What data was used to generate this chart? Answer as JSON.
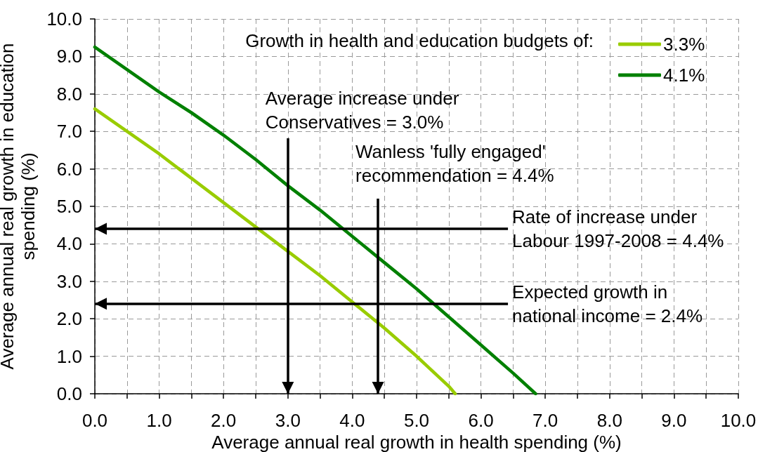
{
  "chart_data": {
    "type": "line",
    "xlabel": "Average annual real growth in health spending (%)",
    "ylabel": "Average annual real growth in education\nspending (%)",
    "legend_title": "Growth in health and education budgets of:",
    "series": [
      {
        "name": "3.3%",
        "color": "#99cc00",
        "x": [
          0,
          0.5,
          1,
          1.5,
          2,
          2.5,
          3,
          3.5,
          4,
          4.5,
          5,
          5.5,
          5.6
        ],
        "values": [
          7.6,
          7.0,
          6.4,
          5.75,
          5.1,
          4.45,
          3.8,
          3.15,
          2.45,
          1.75,
          1.0,
          0.2,
          0
        ]
      },
      {
        "name": "4.1%",
        "color": "#008000",
        "x": [
          0,
          0.5,
          1,
          1.5,
          2,
          2.5,
          3,
          3.5,
          4,
          4.5,
          5,
          5.5,
          6,
          6.5,
          6.85
        ],
        "values": [
          9.25,
          8.65,
          8.05,
          7.5,
          6.9,
          6.25,
          5.55,
          4.9,
          4.2,
          3.5,
          2.8,
          2.05,
          1.3,
          0.55,
          0
        ]
      }
    ],
    "xlim": [
      0,
      10
    ],
    "ylim": [
      0,
      10
    ],
    "xticks": [
      {
        "value": 0,
        "label": "0.0"
      },
      {
        "value": 0.5,
        "label": null
      },
      {
        "value": 1,
        "label": "1.0"
      },
      {
        "value": 1.5,
        "label": null
      },
      {
        "value": 2,
        "label": "2.0"
      },
      {
        "value": 2.5,
        "label": null
      },
      {
        "value": 3,
        "label": "3.0"
      },
      {
        "value": 3.5,
        "label": null
      },
      {
        "value": 4,
        "label": "4.0"
      },
      {
        "value": 4.5,
        "label": null
      },
      {
        "value": 5,
        "label": "5.0"
      },
      {
        "value": 5.5,
        "label": null
      },
      {
        "value": 6,
        "label": "6.0"
      },
      {
        "value": 6.5,
        "label": null
      },
      {
        "value": 7,
        "label": "7.0"
      },
      {
        "value": 7.5,
        "label": null
      },
      {
        "value": 8,
        "label": "8.0"
      },
      {
        "value": 8.5,
        "label": null
      },
      {
        "value": 9,
        "label": "9.0"
      },
      {
        "value": 9.5,
        "label": null
      },
      {
        "value": 10,
        "label": "10.0"
      }
    ],
    "yticks": [
      {
        "value": 0,
        "label": "0.0"
      },
      {
        "value": 1,
        "label": "1.0"
      },
      {
        "value": 2,
        "label": "2.0"
      },
      {
        "value": 3,
        "label": "3.0"
      },
      {
        "value": 4,
        "label": "4.0"
      },
      {
        "value": 5,
        "label": "5.0"
      },
      {
        "value": 6,
        "label": "6.0"
      },
      {
        "value": 7,
        "label": "7.0"
      },
      {
        "value": 8,
        "label": "8.0"
      },
      {
        "value": 9,
        "label": "9.0"
      },
      {
        "value": 10,
        "label": "10.0"
      }
    ],
    "grid": true,
    "legend": "top right",
    "marker": "none",
    "line_style": "solid",
    "ref_lines": [
      {
        "axis": "x",
        "value": 3.0,
        "label": "Average increase under\nConservatives = 3.0%",
        "color": "#000000"
      },
      {
        "axis": "x",
        "value": 4.4,
        "label": "Wanless 'fully engaged'\nrecommendation = 4.4%",
        "color": "#000000"
      },
      {
        "axis": "y",
        "value": 4.4,
        "label": "Rate of increase under\nLabour 1997-2008 = 4.4%",
        "color": "#000000"
      },
      {
        "axis": "y",
        "value": 2.4,
        "label": "Expected growth in\nnational income = 2.4%",
        "color": "#000000"
      }
    ]
  }
}
